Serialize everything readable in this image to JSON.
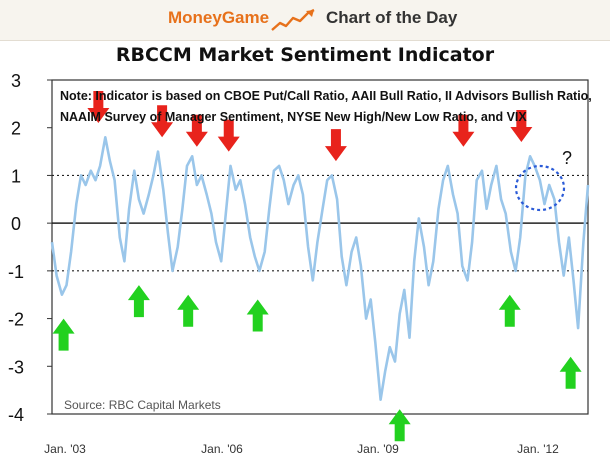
{
  "header": {
    "brand": "MoneyGame",
    "section": "Chart of the Day",
    "icon": "rising-chart-icon",
    "brand_color": "#e7711b"
  },
  "chart_data": {
    "type": "line",
    "title": "RBCCM Market Sentiment Indicator",
    "xlabel": "",
    "ylabel": "",
    "ylim": [
      -4,
      3
    ],
    "yticks": [
      "3",
      "2",
      "1",
      "0",
      "-1",
      "-2",
      "-3",
      "-4"
    ],
    "xticks": [
      "Jan. '03",
      "Jan. '06",
      "Jan. '09",
      "Jan. '12"
    ],
    "xlim": [
      2003.0,
      2012.25
    ],
    "reference_lines": [
      {
        "y": 0,
        "style": "solid"
      },
      {
        "y": 1,
        "style": "dotted"
      },
      {
        "y": -1,
        "style": "dotted"
      }
    ],
    "note": "Note: Indicator is based on CBOE Put/Call Ratio, AAII Bull Ratio, II Advisors Bullish Ratio, NAAIM Survey of Manager Sentiment, NYSE New High/New Low Ratio, and VIX",
    "source": "Source: RBC Capital Markets",
    "question_mark": "?",
    "colors": {
      "line": "#9ac6ea",
      "up_arrow": "#22d11f",
      "down_arrow": "#e8231c",
      "circle": "#2b5bd7"
    },
    "series": [
      {
        "x": [
          2003.0,
          2003.08,
          2003.17,
          2003.25,
          2003.33,
          2003.42,
          2003.5,
          2003.58,
          2003.67,
          2003.75,
          2003.83,
          2003.92,
          2004.0,
          2004.08,
          2004.17,
          2004.25,
          2004.33,
          2004.42,
          2004.5,
          2004.58,
          2004.67,
          2004.75,
          2004.83,
          2004.92,
          2005.0,
          2005.08,
          2005.17,
          2005.25,
          2005.33,
          2005.42,
          2005.5,
          2005.58,
          2005.67,
          2005.75,
          2005.83,
          2005.92,
          2006.0,
          2006.08,
          2006.17,
          2006.25,
          2006.33,
          2006.42,
          2006.5,
          2006.58,
          2006.67,
          2006.75,
          2006.83,
          2006.92,
          2007.0,
          2007.08,
          2007.17,
          2007.25,
          2007.33,
          2007.42,
          2007.5,
          2007.58,
          2007.67,
          2007.75,
          2007.83,
          2007.92,
          2008.0,
          2008.08,
          2008.17,
          2008.25,
          2008.33,
          2008.42,
          2008.5,
          2008.58,
          2008.67,
          2008.75,
          2008.83,
          2008.92,
          2009.0,
          2009.08,
          2009.17,
          2009.25,
          2009.33,
          2009.42,
          2009.5,
          2009.58,
          2009.67,
          2009.75,
          2009.83,
          2009.92,
          2010.0,
          2010.08,
          2010.17,
          2010.25,
          2010.33,
          2010.42,
          2010.5,
          2010.58,
          2010.67,
          2010.75,
          2010.83,
          2010.92,
          2011.0,
          2011.08,
          2011.17,
          2011.25,
          2011.33,
          2011.42,
          2011.5,
          2011.58,
          2011.67,
          2011.75,
          2011.83,
          2011.92,
          2012.0,
          2012.08,
          2012.17,
          2012.25
        ],
        "values": [
          -0.4,
          -1.1,
          -1.5,
          -1.3,
          -0.6,
          0.4,
          1.0,
          0.8,
          1.1,
          0.9,
          1.2,
          1.8,
          1.3,
          0.9,
          -0.3,
          -0.8,
          0.3,
          1.1,
          0.5,
          0.2,
          0.6,
          1.0,
          1.5,
          0.7,
          -0.2,
          -1.0,
          -0.5,
          0.3,
          1.2,
          1.4,
          0.8,
          1.0,
          0.6,
          0.2,
          -0.4,
          -0.8,
          0.2,
          1.2,
          0.7,
          0.9,
          0.4,
          -0.3,
          -0.7,
          -1.0,
          -0.6,
          0.3,
          1.1,
          1.2,
          0.9,
          0.4,
          0.8,
          1.0,
          0.6,
          -0.5,
          -1.2,
          -0.4,
          0.3,
          0.9,
          1.0,
          0.5,
          -0.7,
          -1.3,
          -0.6,
          -0.3,
          -0.9,
          -2.0,
          -1.6,
          -2.5,
          -3.7,
          -3.1,
          -2.6,
          -2.9,
          -1.9,
          -1.4,
          -2.4,
          -0.8,
          0.1,
          -0.5,
          -1.3,
          -0.8,
          0.3,
          0.9,
          1.2,
          0.6,
          0.2,
          -0.9,
          -1.2,
          -0.4,
          0.9,
          1.1,
          0.3,
          0.8,
          1.2,
          0.5,
          0.2,
          -0.6,
          -1.0,
          -0.3,
          1.0,
          1.4,
          1.2,
          0.9,
          0.4,
          0.8,
          0.5,
          -0.4,
          -1.1,
          -0.3,
          -1.2,
          -2.2,
          -0.4,
          0.8
        ]
      }
    ],
    "markers": {
      "up": [
        {
          "x": 2003.2,
          "y": -2.0
        },
        {
          "x": 2004.5,
          "y": -1.3
        },
        {
          "x": 2005.35,
          "y": -1.5
        },
        {
          "x": 2006.55,
          "y": -1.6
        },
        {
          "x": 2009.0,
          "y": -3.9
        },
        {
          "x": 2010.9,
          "y": -1.5
        },
        {
          "x": 2011.95,
          "y": -2.8
        }
      ],
      "down": [
        {
          "x": 2003.8,
          "y": 2.1
        },
        {
          "x": 2004.9,
          "y": 1.8
        },
        {
          "x": 2005.5,
          "y": 1.6
        },
        {
          "x": 2006.05,
          "y": 1.5
        },
        {
          "x": 2007.9,
          "y": 1.3
        },
        {
          "x": 2010.1,
          "y": 1.6
        },
        {
          "x": 2011.1,
          "y": 1.7
        }
      ]
    }
  }
}
